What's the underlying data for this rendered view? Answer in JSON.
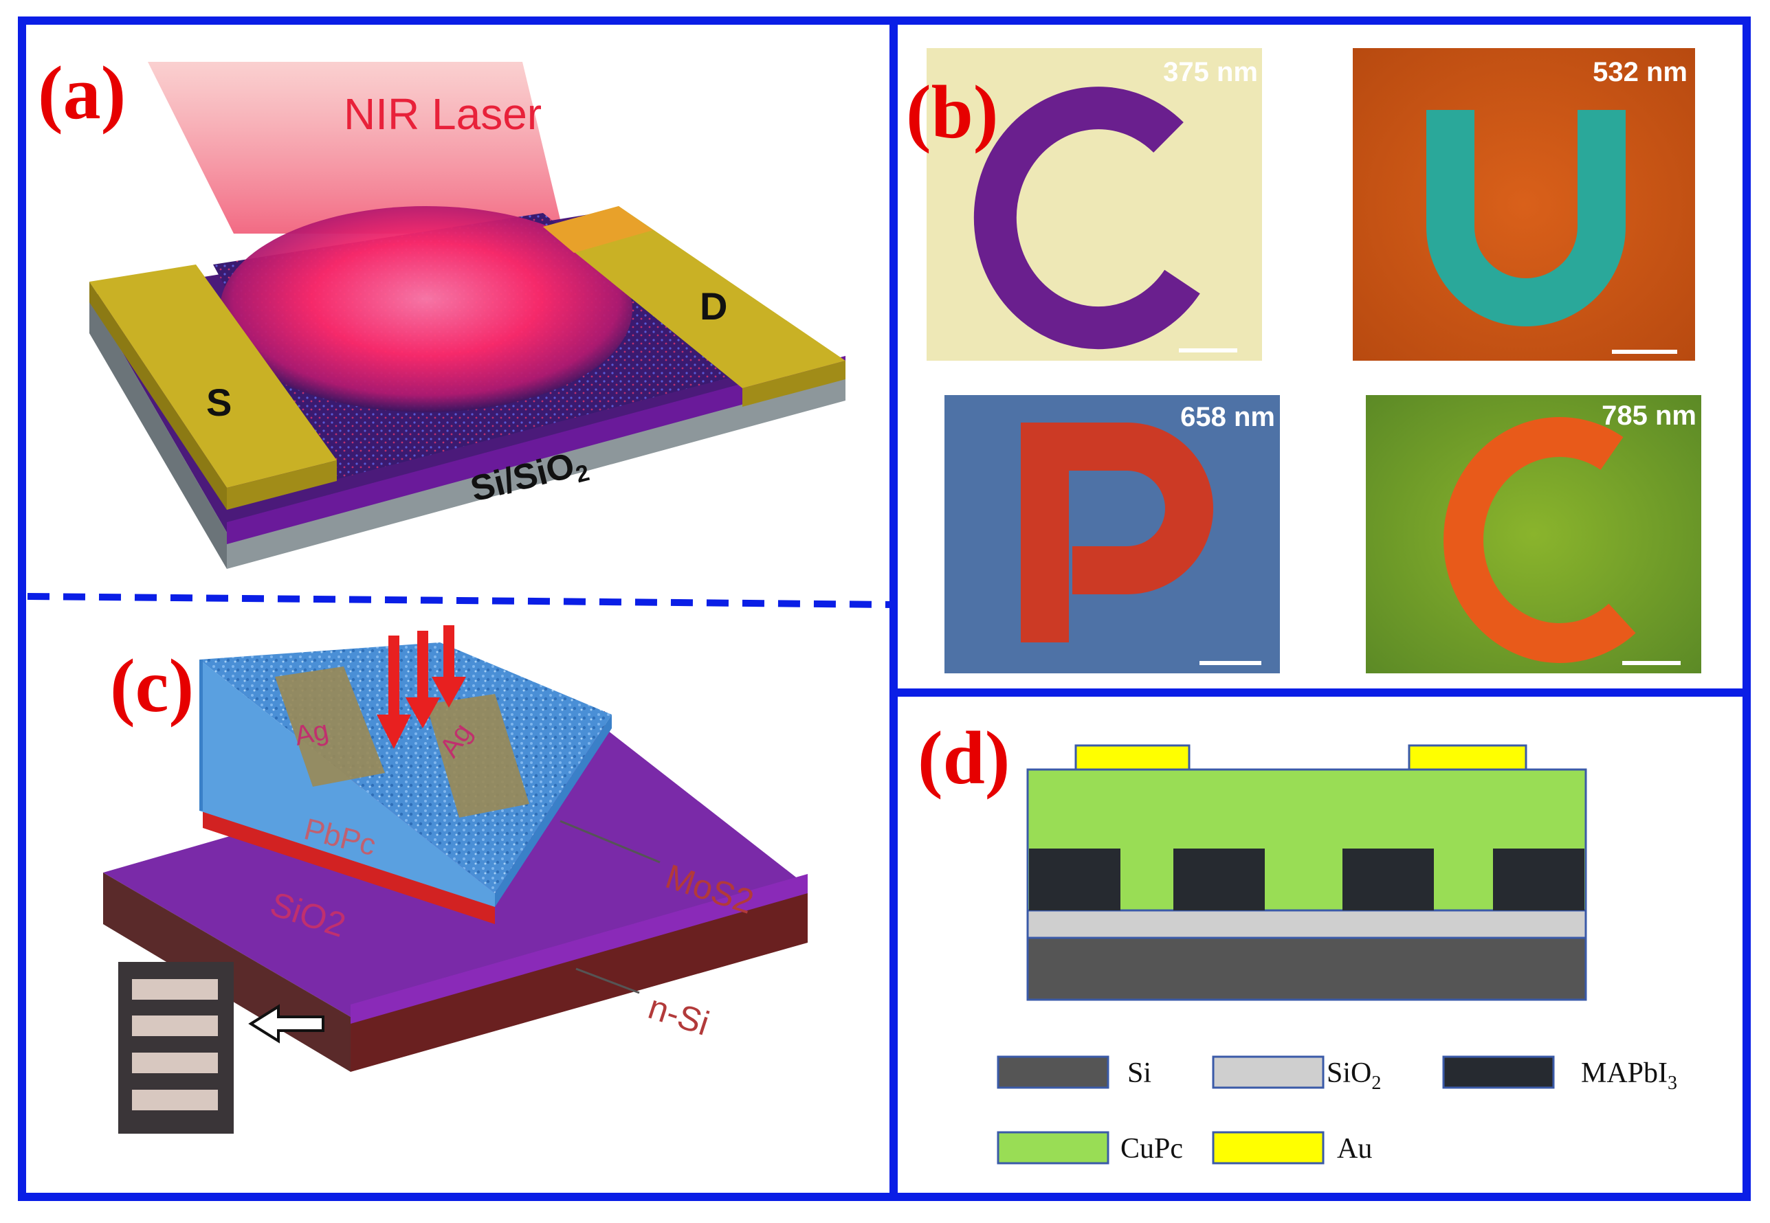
{
  "panels": {
    "a": {
      "label": "(a)",
      "laser_label": "NIR Laser",
      "source_label": "S",
      "drain_label": "D",
      "substrate_label_main": "Si/SiO",
      "substrate_label_sub": "2"
    },
    "b": {
      "label": "(b)",
      "tiles": [
        {
          "wavelength": "375 nm",
          "letter": "C"
        },
        {
          "wavelength": "532 nm",
          "letter": "U"
        },
        {
          "wavelength": "658 nm",
          "letter": "P"
        },
        {
          "wavelength": "785 nm",
          "letter": "C"
        }
      ]
    },
    "c": {
      "label": "(c)",
      "electrode_1": "Ag",
      "electrode_2": "Ag",
      "film_label": "PbPc",
      "mos2_label": "MoS2",
      "sio2_label": "SiO2",
      "si_label": "n-Si"
    },
    "d": {
      "label": "(d)",
      "legend": [
        {
          "name": "Si",
          "sub": "",
          "color": "#555555"
        },
        {
          "name": "SiO",
          "sub": "2",
          "color": "#cfcfcf"
        },
        {
          "name": "MAPbI",
          "sub": "3",
          "color": "#262a30"
        },
        {
          "name": "CuPc",
          "sub": "",
          "color": "#99dd55"
        },
        {
          "name": "Au",
          "sub": "",
          "color": "#ffff00"
        }
      ]
    }
  },
  "colors": {
    "frame_blue": "#0a1ee6",
    "label_red": "#e60000",
    "gold": "#c9b125",
    "purple": "#7a1aa8"
  }
}
